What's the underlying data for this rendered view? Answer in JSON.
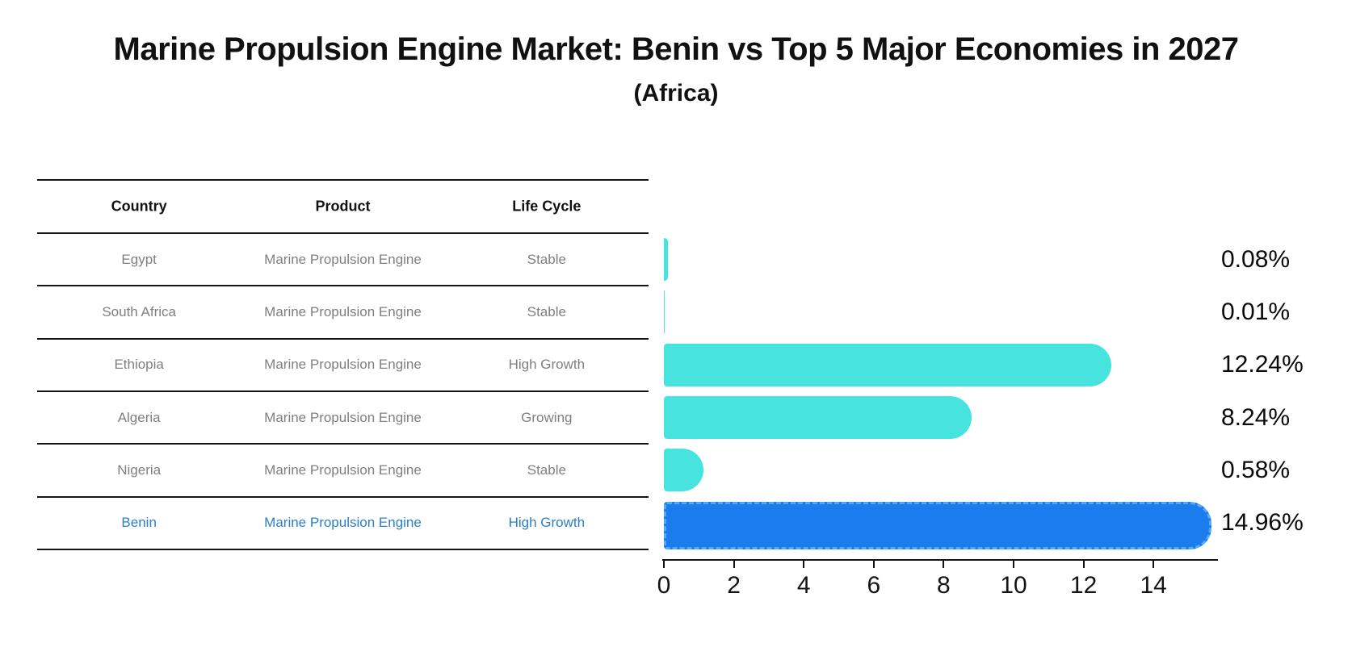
{
  "title": "Marine Propulsion Engine Market: Benin vs Top 5 Major Economies in 2027",
  "subtitle": "(Africa)",
  "table": {
    "headers": [
      "Country",
      "Product",
      "Life Cycle"
    ],
    "rows": [
      {
        "country": "Egypt",
        "product": "Marine Propulsion Engine",
        "life_cycle": "Stable",
        "highlight": false
      },
      {
        "country": "South Africa",
        "product": "Marine Propulsion Engine",
        "life_cycle": "Stable",
        "highlight": false
      },
      {
        "country": "Ethiopia",
        "product": "Marine Propulsion Engine",
        "life_cycle": "High Growth",
        "highlight": false
      },
      {
        "country": "Algeria",
        "product": "Marine Propulsion Engine",
        "life_cycle": "Growing",
        "highlight": false
      },
      {
        "country": "Nigeria",
        "product": "Marine Propulsion Engine",
        "life_cycle": "Stable",
        "highlight": false
      },
      {
        "country": "Benin",
        "product": "Marine Propulsion Engine",
        "life_cycle": "High Growth",
        "highlight": true
      }
    ]
  },
  "chart_data": {
    "type": "bar",
    "orientation": "horizontal",
    "title": "Marine Propulsion Engine Market: Benin vs Top 5 Major Economies in 2027 (Africa)",
    "categories": [
      "Egypt",
      "South Africa",
      "Ethiopia",
      "Algeria",
      "Nigeria",
      "Benin"
    ],
    "values": [
      0.08,
      0.01,
      12.24,
      8.24,
      0.58,
      14.96
    ],
    "value_labels": [
      "0.08%",
      "0.01%",
      "12.24%",
      "8.24%",
      "0.58%",
      "14.96%"
    ],
    "unit": "percent",
    "xticks": [
      0,
      2,
      4,
      6,
      8,
      10,
      12,
      14
    ],
    "xlim": [
      0,
      15.8
    ],
    "grid": false,
    "legend": false,
    "highlight_index": 5
  },
  "colors": {
    "bar_default": "#47e4df",
    "bar_highlight": "#1b7ded",
    "bar_highlight_border": "#57a9f2",
    "highlight_text": "#2a7fc8",
    "table_text": "#7f7f7f",
    "line": "#141414"
  }
}
